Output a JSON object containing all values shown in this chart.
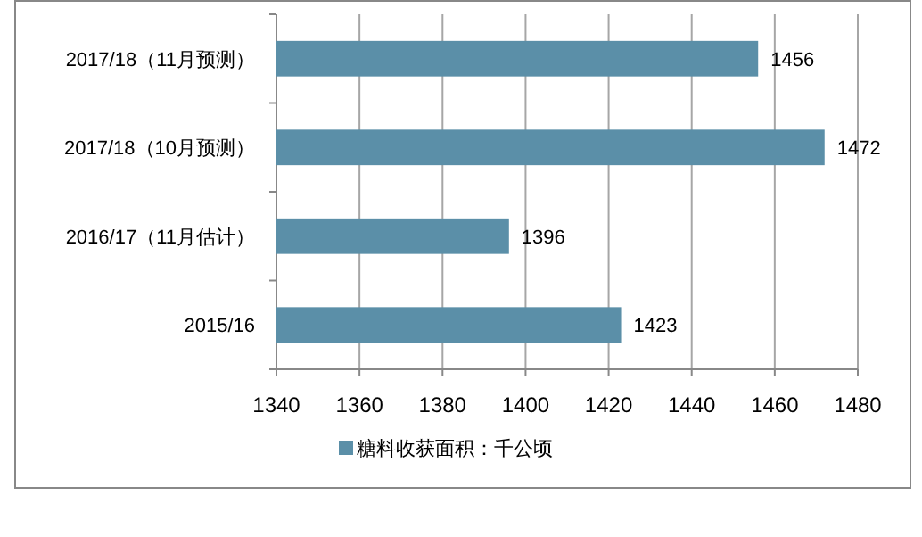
{
  "chart_data": {
    "type": "bar",
    "orientation": "horizontal",
    "categories": [
      "2017/18（11月预测）",
      "2017/18（10月预测）",
      "2016/17（11月估计）",
      "2015/16"
    ],
    "series": [
      {
        "name": "糖料收获面积：千公顷",
        "color": "#5b8fa8",
        "values": [
          1456,
          1472,
          1396,
          1423
        ]
      }
    ],
    "xlim": [
      1340,
      1480
    ],
    "xticks": [
      1340,
      1360,
      1380,
      1400,
      1420,
      1440,
      1460,
      1480
    ],
    "grid": "x",
    "legend": "bottom",
    "data_labels": true
  }
}
